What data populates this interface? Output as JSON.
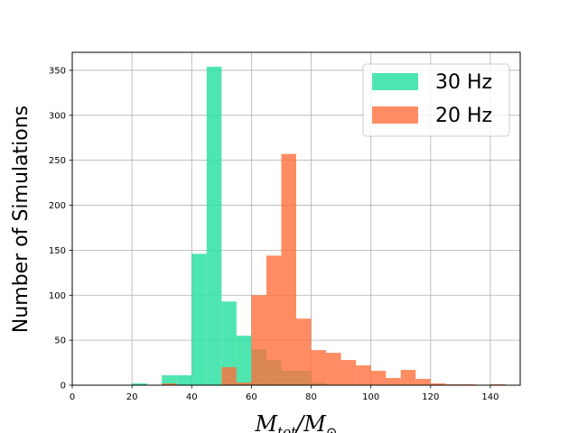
{
  "chart_data": {
    "type": "bar",
    "title": "",
    "xlabel": "M_tot/M_⊙",
    "xlabel_main": "M",
    "xlabel_sub": "tot",
    "xlabel_slash": "/M",
    "xlabel_sub2": "⊙",
    "ylabel": "Number of Simulations",
    "xlim": [
      0,
      150
    ],
    "ylim": [
      0,
      370
    ],
    "xticks": [
      "0",
      "20",
      "40",
      "60",
      "80",
      "100",
      "120",
      "140"
    ],
    "yticks": [
      "0",
      "50",
      "100",
      "150",
      "200",
      "250",
      "300",
      "350"
    ],
    "grid": true,
    "legend_position": "top-right",
    "series": [
      {
        "name": "30 Hz",
        "color": "#2fe0a3",
        "opacity": 0.85,
        "bins": [
          {
            "x0": 20,
            "x1": 25,
            "value": 2
          },
          {
            "x0": 30,
            "x1": 35,
            "value": 11
          },
          {
            "x0": 35,
            "x1": 40,
            "value": 11
          },
          {
            "x0": 40,
            "x1": 45,
            "value": 146
          },
          {
            "x0": 45,
            "x1": 50,
            "value": 354
          },
          {
            "x0": 50,
            "x1": 55,
            "value": 93
          },
          {
            "x0": 55,
            "x1": 60,
            "value": 55
          },
          {
            "x0": 60,
            "x1": 65,
            "value": 40
          },
          {
            "x0": 65,
            "x1": 70,
            "value": 28
          },
          {
            "x0": 70,
            "x1": 75,
            "value": 16
          },
          {
            "x0": 75,
            "x1": 80,
            "value": 16
          },
          {
            "x0": 80,
            "x1": 85,
            "value": 3
          }
        ]
      },
      {
        "name": "20 Hz",
        "color": "#ff6f3c",
        "opacity": 0.8,
        "bins": [
          {
            "x0": 30,
            "x1": 35,
            "value": 2
          },
          {
            "x0": 50,
            "x1": 55,
            "value": 20
          },
          {
            "x0": 55,
            "x1": 60,
            "value": 3
          },
          {
            "x0": 60,
            "x1": 65,
            "value": 100
          },
          {
            "x0": 65,
            "x1": 70,
            "value": 144
          },
          {
            "x0": 70,
            "x1": 75,
            "value": 257
          },
          {
            "x0": 75,
            "x1": 80,
            "value": 74
          },
          {
            "x0": 80,
            "x1": 85,
            "value": 39
          },
          {
            "x0": 85,
            "x1": 90,
            "value": 36
          },
          {
            "x0": 90,
            "x1": 95,
            "value": 28
          },
          {
            "x0": 95,
            "x1": 100,
            "value": 22
          },
          {
            "x0": 100,
            "x1": 105,
            "value": 16
          },
          {
            "x0": 105,
            "x1": 110,
            "value": 8
          },
          {
            "x0": 110,
            "x1": 115,
            "value": 17
          },
          {
            "x0": 115,
            "x1": 120,
            "value": 7
          },
          {
            "x0": 120,
            "x1": 125,
            "value": 2
          },
          {
            "x0": 125,
            "x1": 130,
            "value": 1
          },
          {
            "x0": 130,
            "x1": 135,
            "value": 1
          },
          {
            "x0": 140,
            "x1": 145,
            "value": 1
          }
        ]
      }
    ]
  }
}
